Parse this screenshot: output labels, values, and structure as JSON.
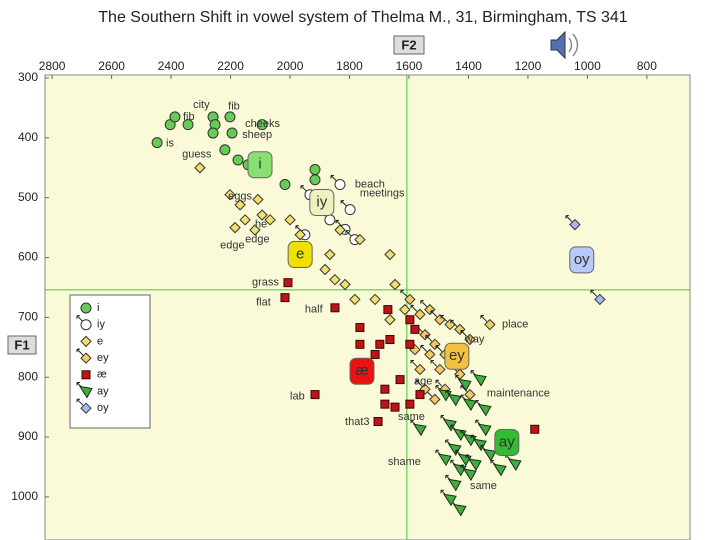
{
  "chart_data": {
    "type": "scatter",
    "title": "The Southern Shift in vowel system of Thelma M., 31, Birmingham, TS 341",
    "xlabel": "F2",
    "ylabel": "F1",
    "xlim": [
      2824,
      655
    ],
    "ylim": [
      295,
      1072
    ],
    "xticks": [
      2800,
      2600,
      2400,
      2200,
      2000,
      1800,
      1600,
      1400,
      1200,
      1000,
      800
    ],
    "yticks": [
      300,
      400,
      500,
      600,
      700,
      800,
      900,
      1000
    ],
    "grid": false,
    "legend": "left",
    "crosshair": {
      "x": 1607,
      "y": 654
    },
    "series": [
      {
        "name": "i",
        "color": "#66cc55",
        "marker": "circle",
        "arrow": false,
        "x": [
          2447,
          2403,
          2387,
          2343,
          2259,
          2252,
          2259,
          2202,
          2195,
          2219,
          2175,
          2094,
          2141,
          2017,
          1916,
          1916,
          1899
        ],
        "y": [
          408,
          378,
          365,
          378,
          365,
          378,
          392,
          365,
          392,
          420,
          437,
          378,
          445,
          478,
          453,
          470,
          503
        ]
      },
      {
        "name": "iy",
        "color": "#ffffff",
        "marker": "circle",
        "arrow": true,
        "x": [
          1933,
          1798,
          1832,
          1815,
          1782,
          1866,
          1950
        ],
        "y": [
          495,
          520,
          478,
          553,
          570,
          537,
          562
        ]
      },
      {
        "name": "e",
        "color": "#f0e070",
        "marker": "diamond",
        "arrow": false,
        "x": [
          2303,
          2202,
          2168,
          2108,
          2094,
          2151,
          2067,
          2185,
          2118,
          2000,
          1966,
          1832,
          1765,
          1866,
          1882,
          1849,
          1815,
          1714,
          1664,
          1647,
          1614,
          1664,
          1782
        ],
        "y": [
          450,
          495,
          512,
          503,
          529,
          537,
          537,
          550,
          554,
          537,
          562,
          554,
          570,
          595,
          620,
          637,
          645,
          670,
          595,
          645,
          687,
          704,
          670
        ]
      },
      {
        "name": "ey",
        "color": "#f2cc66",
        "marker": "diamond",
        "arrow": true,
        "x": [
          1597,
          1563,
          1530,
          1496,
          1462,
          1429,
          1395,
          1546,
          1513,
          1479,
          1580,
          1530,
          1446,
          1496,
          1429,
          1563,
          1479,
          1395,
          1513,
          1328,
          1546
        ],
        "y": [
          670,
          695,
          687,
          704,
          712,
          720,
          737,
          729,
          745,
          762,
          754,
          762,
          770,
          787,
          795,
          787,
          820,
          829,
          837,
          712,
          820
        ]
      },
      {
        "name": "æ",
        "color": "#bb1515",
        "marker": "square",
        "arrow": false,
        "x": [
          2007,
          2017,
          1849,
          1765,
          1671,
          1664,
          1698,
          1714,
          1597,
          1580,
          1597,
          1765,
          1630,
          1681,
          1681,
          1647,
          1597,
          1563,
          1916,
          1704,
          1177
        ],
        "y": [
          642,
          667,
          684,
          717,
          687,
          737,
          745,
          762,
          704,
          720,
          745,
          745,
          804,
          820,
          845,
          850,
          845,
          829,
          829,
          874,
          887
        ]
      },
      {
        "name": "ay",
        "color": "#44aa44",
        "marker": "triangle",
        "arrow": true,
        "x": [
          1479,
          1446,
          1412,
          1361,
          1395,
          1345,
          1462,
          1429,
          1395,
          1361,
          1446,
          1412,
          1378,
          1429,
          1395,
          1328,
          1294,
          1345,
          1479,
          1563,
          1446,
          1429,
          1462,
          1244
        ],
        "y": [
          829,
          837,
          812,
          804,
          845,
          854,
          879,
          895,
          904,
          912,
          920,
          937,
          945,
          954,
          962,
          929,
          954,
          887,
          937,
          887,
          979,
          1021,
          1004,
          945
        ]
      },
      {
        "name": "oy",
        "color": "#aab8f0",
        "marker": "diamond",
        "arrow": true,
        "x": [
          1042,
          958
        ],
        "y": [
          545,
          670
        ]
      }
    ],
    "means": [
      {
        "label": "i",
        "x": 2101,
        "y": 445,
        "color": "#88e070"
      },
      {
        "label": "iy",
        "x": 1893,
        "y": 508,
        "color": "#eef2c0"
      },
      {
        "label": "e",
        "x": 1966,
        "y": 595,
        "color": "#f0e000"
      },
      {
        "label": "ey",
        "x": 1439,
        "y": 765,
        "color": "#f4c040"
      },
      {
        "label": "æ",
        "x": 1758,
        "y": 790,
        "color": "#ee1111"
      },
      {
        "label": "ay",
        "x": 1271,
        "y": 909,
        "color": "#33bb33"
      },
      {
        "label": "oy",
        "x": 1019,
        "y": 604,
        "color": "#b8c8f8"
      }
    ],
    "annotations": [
      {
        "text": "city",
        "x": 2326,
        "y": 345
      },
      {
        "text": "fib",
        "x": 2360,
        "y": 365
      },
      {
        "text": "fib",
        "x": 2208,
        "y": 348
      },
      {
        "text": "cheeks",
        "x": 2151,
        "y": 377
      },
      {
        "text": "sheep",
        "x": 2161,
        "y": 395
      },
      {
        "text": "is",
        "x": 2417,
        "y": 410
      },
      {
        "text": "guess",
        "x": 2363,
        "y": 428
      },
      {
        "text": "beach",
        "x": 1782,
        "y": 478
      },
      {
        "text": "meetings",
        "x": 1765,
        "y": 493
      },
      {
        "text": "eggs",
        "x": 2208,
        "y": 498
      },
      {
        "text": "he",
        "x": 2118,
        "y": 545
      },
      {
        "text": "edge",
        "x": 2151,
        "y": 570
      },
      {
        "text": "edge",
        "x": 2235,
        "y": 580
      },
      {
        "text": "grass",
        "x": 2128,
        "y": 642
      },
      {
        "text": "flat",
        "x": 2114,
        "y": 675
      },
      {
        "text": "half",
        "x": 1950,
        "y": 687
      },
      {
        "text": "place",
        "x": 1287,
        "y": 712
      },
      {
        "text": "way",
        "x": 1412,
        "y": 737
      },
      {
        "text": "age",
        "x": 1583,
        "y": 807
      },
      {
        "text": "maintenance",
        "x": 1338,
        "y": 827
      },
      {
        "text": "lab",
        "x": 2000,
        "y": 832
      },
      {
        "text": "that3",
        "x": 1815,
        "y": 875
      },
      {
        "text": "same",
        "x": 1637,
        "y": 867
      },
      {
        "text": "shame",
        "x": 1671,
        "y": 942
      },
      {
        "text": "same",
        "x": 1395,
        "y": 982
      }
    ]
  }
}
